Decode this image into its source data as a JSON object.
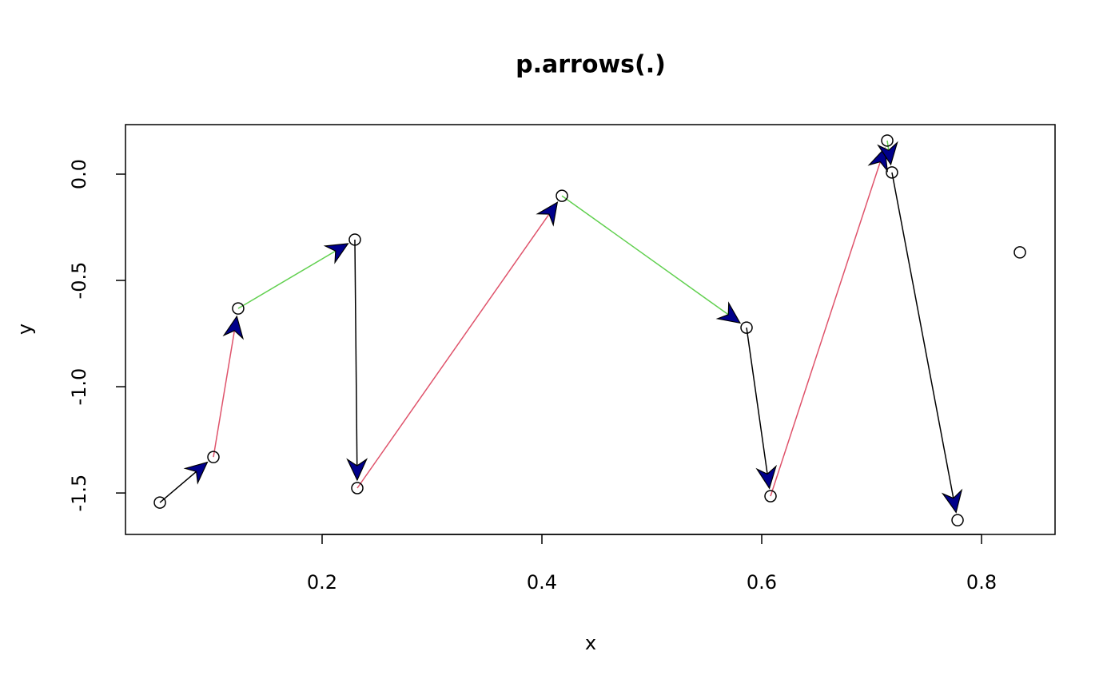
{
  "chart_data": {
    "type": "scatter",
    "title": "p.arrows(.)",
    "x_label": "x",
    "y_label": "y",
    "x": [
      0.0524,
      0.1011,
      0.1236,
      0.2298,
      0.232,
      0.4182,
      0.5862,
      0.608,
      0.7142,
      0.7185,
      0.7782,
      0.8349
    ],
    "y": [
      -1.545,
      -1.331,
      -0.632,
      -0.308,
      -1.477,
      -0.102,
      -0.722,
      -1.515,
      0.158,
      0.008,
      -1.628,
      -0.368
    ],
    "segment_colors": [
      "#000000",
      "#DF536B",
      "#61D04F"
    ],
    "arrow_fill": "#00008B",
    "xlim": [
      0.0211,
      0.8669
    ],
    "ylim": [
      -1.695,
      0.233
    ],
    "xticks": [
      0.2,
      0.4,
      0.6,
      0.8
    ],
    "yticks": [
      {
        "value": 0,
        "label": "0.0"
      },
      -0.5,
      {
        "value": -1,
        "label": "-1.0"
      },
      -1.5
    ]
  }
}
